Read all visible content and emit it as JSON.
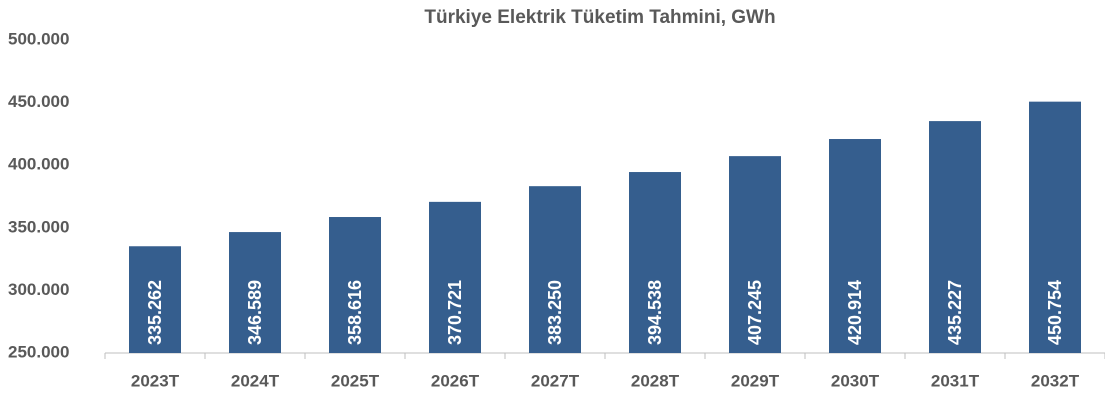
{
  "chart_data": {
    "type": "bar",
    "title": "Türkiye Elektrik Tüketim Tahmini, GWh",
    "categories": [
      "2023T",
      "2024T",
      "2025T",
      "2026T",
      "2027T",
      "2028T",
      "2029T",
      "2030T",
      "2031T",
      "2032T"
    ],
    "values": [
      335262,
      346589,
      358616,
      370721,
      383250,
      394538,
      407245,
      420914,
      435227,
      450754
    ],
    "value_labels": [
      "335.262",
      "346.589",
      "358.616",
      "370.721",
      "383.250",
      "394.538",
      "407.245",
      "420.914",
      "435.227",
      "450.754"
    ],
    "color": "#355e8e",
    "ylim": [
      250000,
      500000
    ],
    "yticks": [
      {
        "value": 250000,
        "label": "250.000"
      },
      {
        "value": 300000,
        "label": "300.000"
      },
      {
        "value": 350000,
        "label": "350.000"
      },
      {
        "value": 400000,
        "label": "400.000"
      },
      {
        "value": 450000,
        "label": "450.000"
      },
      {
        "value": 500000,
        "label": "500.000"
      }
    ],
    "grid": false
  }
}
